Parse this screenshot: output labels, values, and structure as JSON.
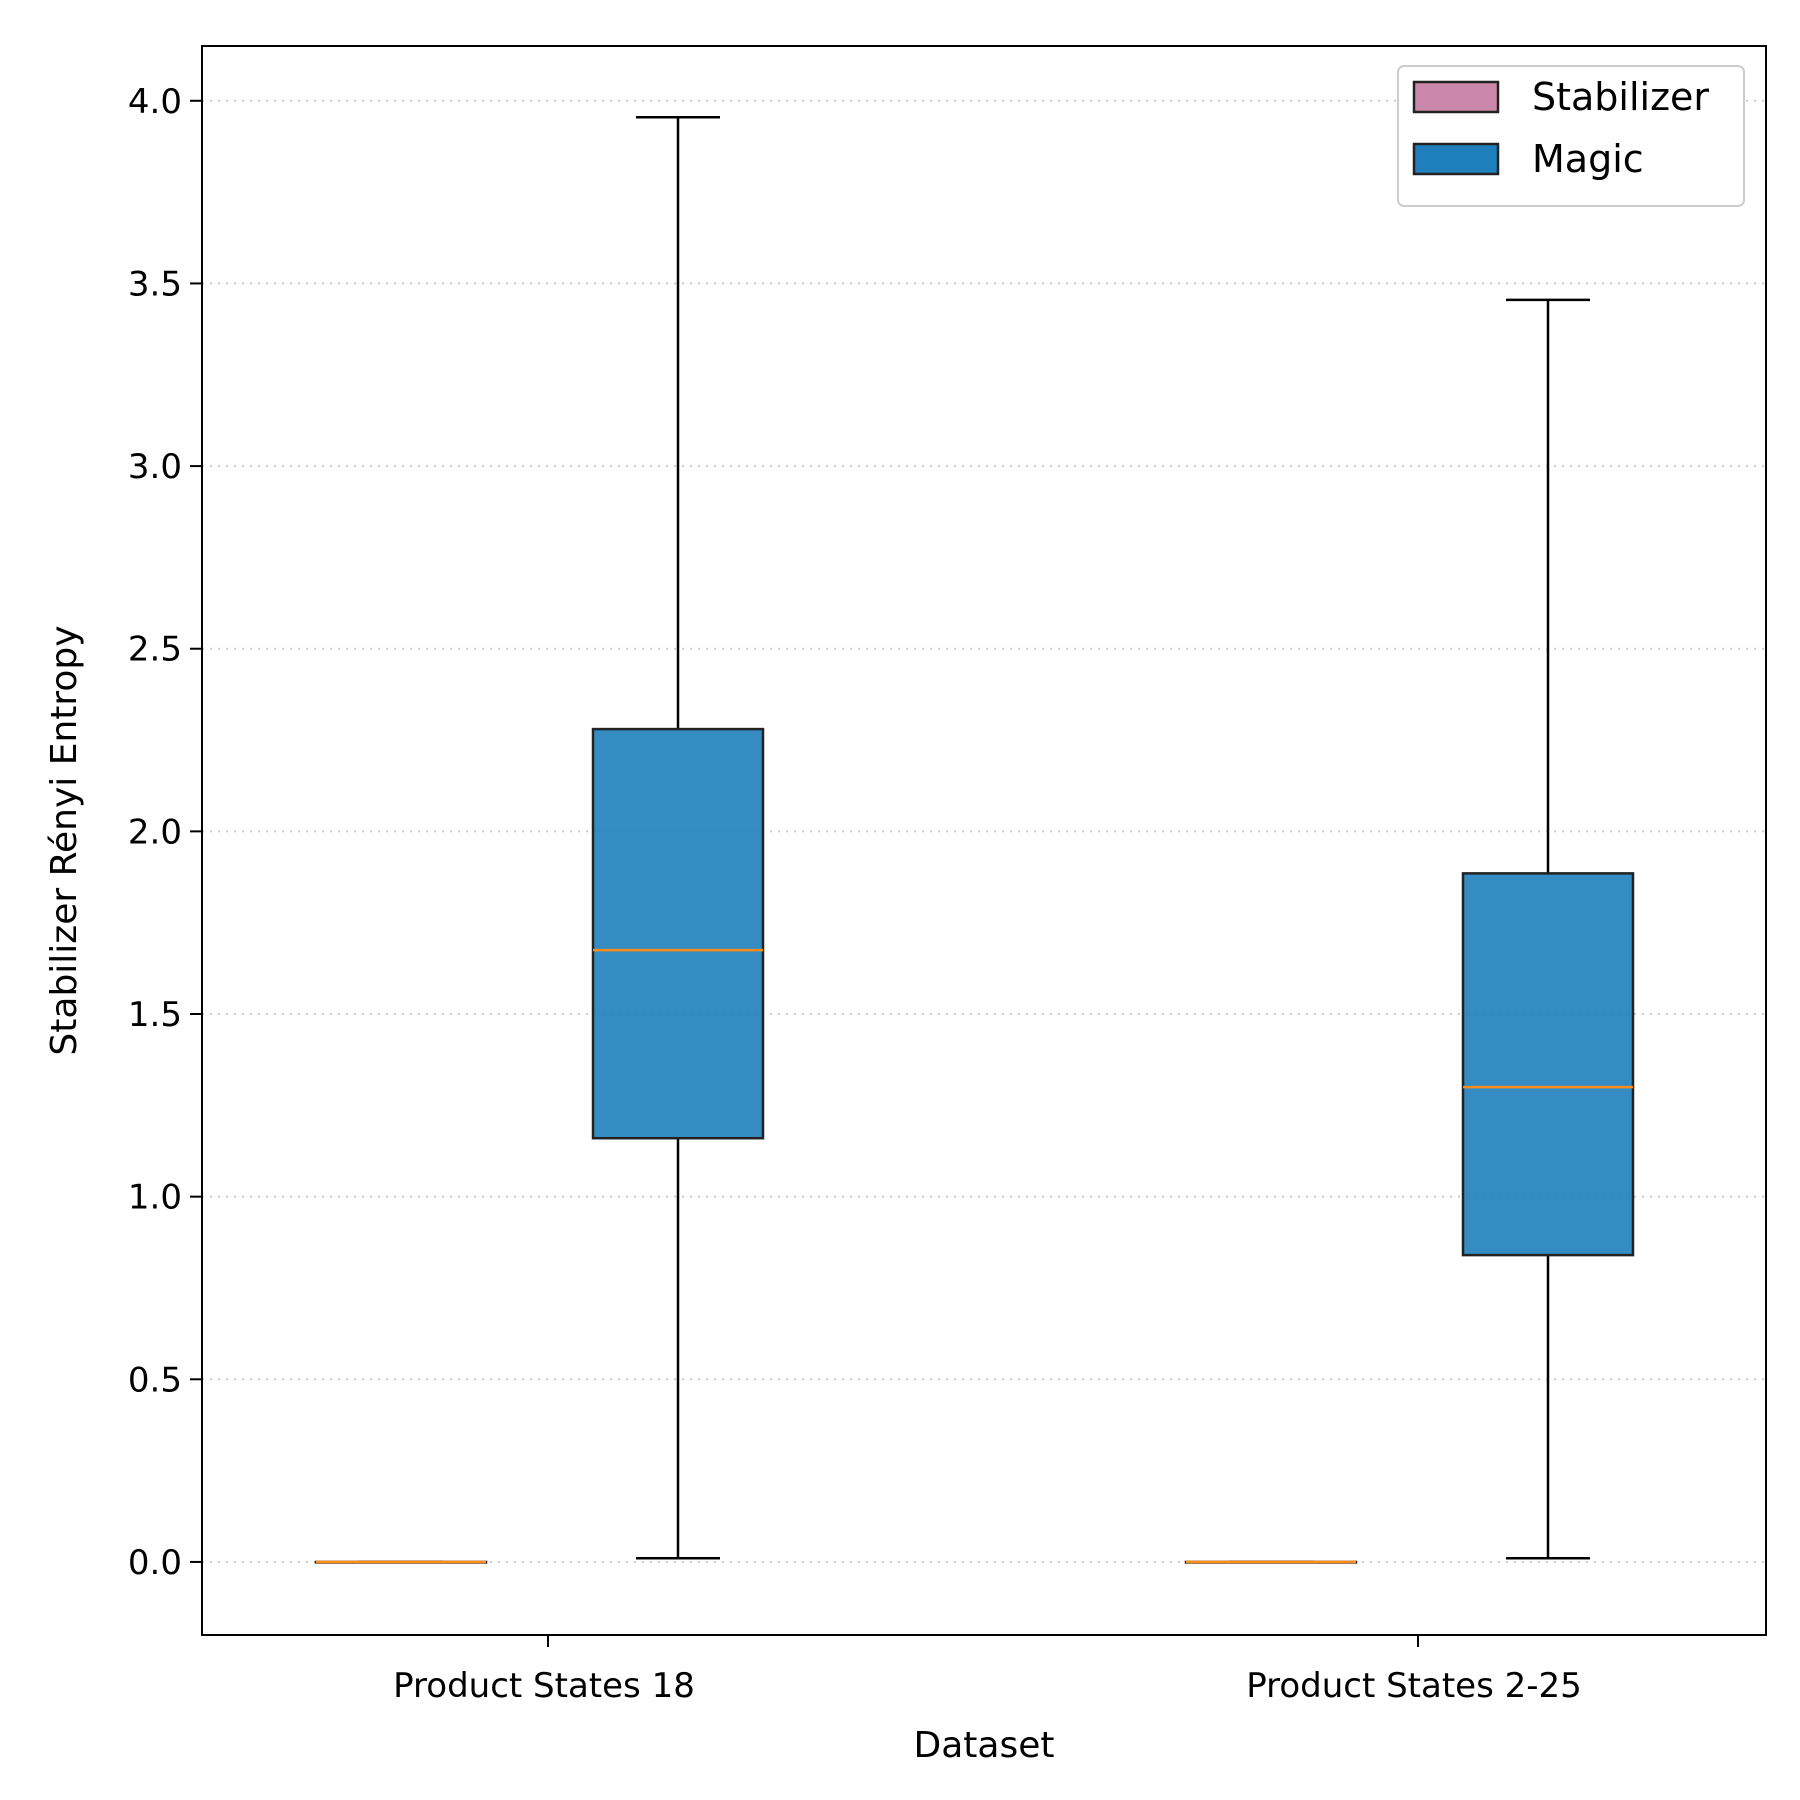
{
  "chart_data": {
    "type": "boxplot",
    "xlabel": "Dataset",
    "ylabel": "Stabilizer Rényi Entropy",
    "ylim": [
      -0.2,
      4.15
    ],
    "yticks": [
      0.0,
      0.5,
      1.0,
      1.5,
      2.0,
      2.5,
      3.0,
      3.5,
      4.0
    ],
    "ytick_labels": [
      "0.0",
      "0.5",
      "1.0",
      "1.5",
      "2.0",
      "2.5",
      "3.0",
      "3.5",
      "4.0"
    ],
    "grid": "y-dotted",
    "categories": [
      "Product States 18",
      "Product States 2-25"
    ],
    "legend_position": "top-right",
    "series": [
      {
        "name": "Stabilizer",
        "color": "#cc88aa",
        "boxes": [
          {
            "whislo": 0.0,
            "q1": 0.0,
            "med": 0.0,
            "q3": 0.0,
            "whishi": 0.0
          },
          {
            "whislo": 0.0,
            "q1": 0.0,
            "med": 0.0,
            "q3": 0.0,
            "whishi": 0.0
          }
        ]
      },
      {
        "name": "Magic",
        "color": "#1f7fbd",
        "boxes": [
          {
            "whislo": 0.01,
            "q1": 1.16,
            "med": 1.675,
            "q3": 2.28,
            "whishi": 3.955
          },
          {
            "whislo": 0.01,
            "q1": 0.84,
            "med": 1.3,
            "q3": 1.885,
            "whishi": 3.455
          }
        ]
      }
    ],
    "colors": {
      "box_edge": "#222222",
      "median": "#ff8c1a",
      "whisker": "#000000",
      "grid": "#cccccc"
    }
  }
}
